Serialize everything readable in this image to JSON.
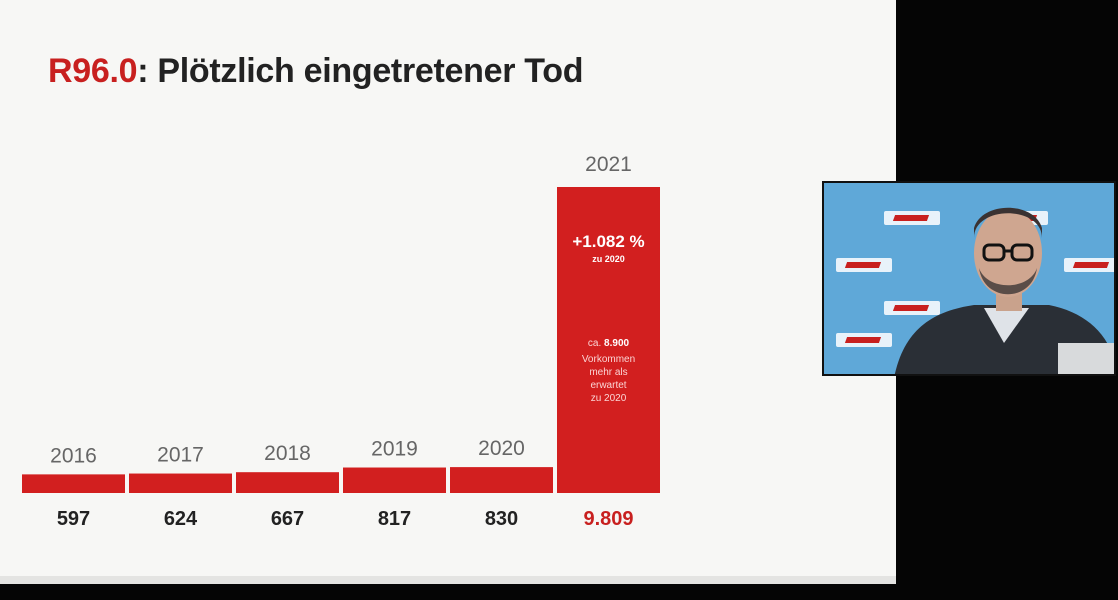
{
  "slide": {
    "title_code": "R96.0",
    "title_text": ": Plötzlich eingetretener Tod"
  },
  "chart_data": {
    "type": "bar",
    "categories": [
      "2016",
      "2017",
      "2018",
      "2019",
      "2020",
      "2021"
    ],
    "values": [
      597,
      624,
      667,
      817,
      830,
      9809
    ],
    "value_labels": [
      "597",
      "624",
      "667",
      "817",
      "830",
      "9.809"
    ],
    "title": "R96.0: Plötzlich eingetretener Tod",
    "xlabel": "",
    "ylabel": "",
    "ylim": [
      0,
      9809
    ],
    "grid": false,
    "bar_color": "#d21f1f",
    "highlight_label_color": "#c8201f",
    "annotations": {
      "change": "+1.082 %",
      "change_sub": "zu 2020",
      "note_prefix": "ca.",
      "note_value": "8.900",
      "note_lines": [
        "Vorkommen",
        "mehr als",
        "erwartet",
        "zu 2020"
      ]
    }
  },
  "video_feed": {
    "name": "speaker-webcam",
    "background_color": "#5fa8d8"
  }
}
